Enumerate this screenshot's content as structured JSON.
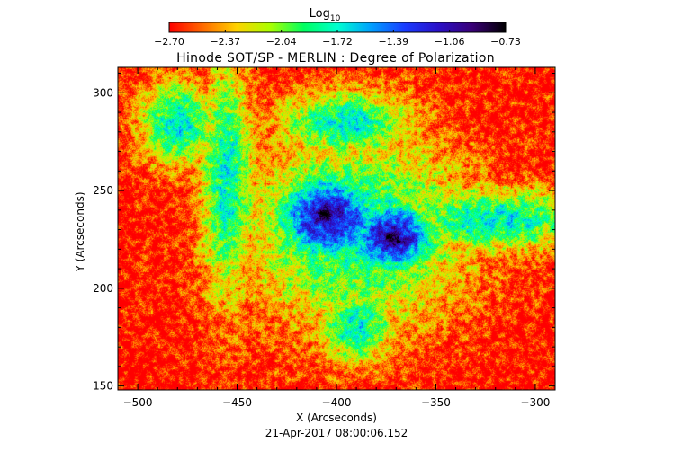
{
  "chart_data": {
    "type": "heatmap",
    "title": "Hinode SOT/SP - MERLIN : Degree of Polarization",
    "colorbar": {
      "label_base": "Log",
      "label_sub": "10",
      "ticks": [
        "-2.70",
        "-2.37",
        "-2.04",
        "-1.72",
        "-1.39",
        "-1.06",
        "-0.73"
      ],
      "range": [
        -2.7,
        -0.73
      ],
      "colormap": [
        "#ff0000",
        "#ff6a00",
        "#ffd200",
        "#aaff00",
        "#00ff60",
        "#00ffd0",
        "#00a0ff",
        "#1a3cff",
        "#2a10c8",
        "#3a0078",
        "#000000"
      ]
    },
    "xlabel": "X (Arcseconds)",
    "ylabel": "Y (Arcseconds)",
    "xlim": [
      -510,
      -290
    ],
    "ylim": [
      148,
      313
    ],
    "xticks": [
      -500,
      -450,
      -400,
      -350,
      -300
    ],
    "yticks": [
      150,
      200,
      250,
      300
    ],
    "xtick_labels": [
      "−500",
      "−450",
      "−400",
      "−350",
      "−300"
    ],
    "ytick_labels": [
      "150",
      "200",
      "250",
      "300"
    ],
    "background_level": -2.7,
    "features": [
      {
        "name": "sunspot-umbra-left",
        "x": -406,
        "y": 238,
        "peak": -0.73,
        "sx": 7,
        "sy": 7
      },
      {
        "name": "sunspot-penumbra-left",
        "x": -404,
        "y": 236,
        "peak": -1.06,
        "sx": 20,
        "sy": 17
      },
      {
        "name": "sunspot-umbra-right",
        "x": -371,
        "y": 226,
        "peak": -0.73,
        "sx": 6,
        "sy": 6
      },
      {
        "name": "sunspot-penumbra-right",
        "x": -372,
        "y": 226,
        "peak": -1.06,
        "sx": 17,
        "sy": 14
      },
      {
        "name": "plage-central",
        "x": -390,
        "y": 230,
        "peak": -1.72,
        "sx": 40,
        "sy": 35
      },
      {
        "name": "network-left-lane",
        "x": -455,
        "y": 255,
        "peak": -1.72,
        "sx": 10,
        "sy": 45
      },
      {
        "name": "network-upper-left",
        "x": -480,
        "y": 285,
        "peak": -1.72,
        "sx": 14,
        "sy": 16
      },
      {
        "name": "network-right-strip",
        "x": -320,
        "y": 235,
        "peak": -1.72,
        "sx": 35,
        "sy": 12
      },
      {
        "name": "network-lower-center",
        "x": -390,
        "y": 180,
        "peak": -1.72,
        "sx": 14,
        "sy": 14
      },
      {
        "name": "network-upper-center",
        "x": -395,
        "y": 285,
        "peak": -1.72,
        "sx": 25,
        "sy": 12
      }
    ],
    "timestamp": "21-Apr-2017 08:00:06.152"
  }
}
